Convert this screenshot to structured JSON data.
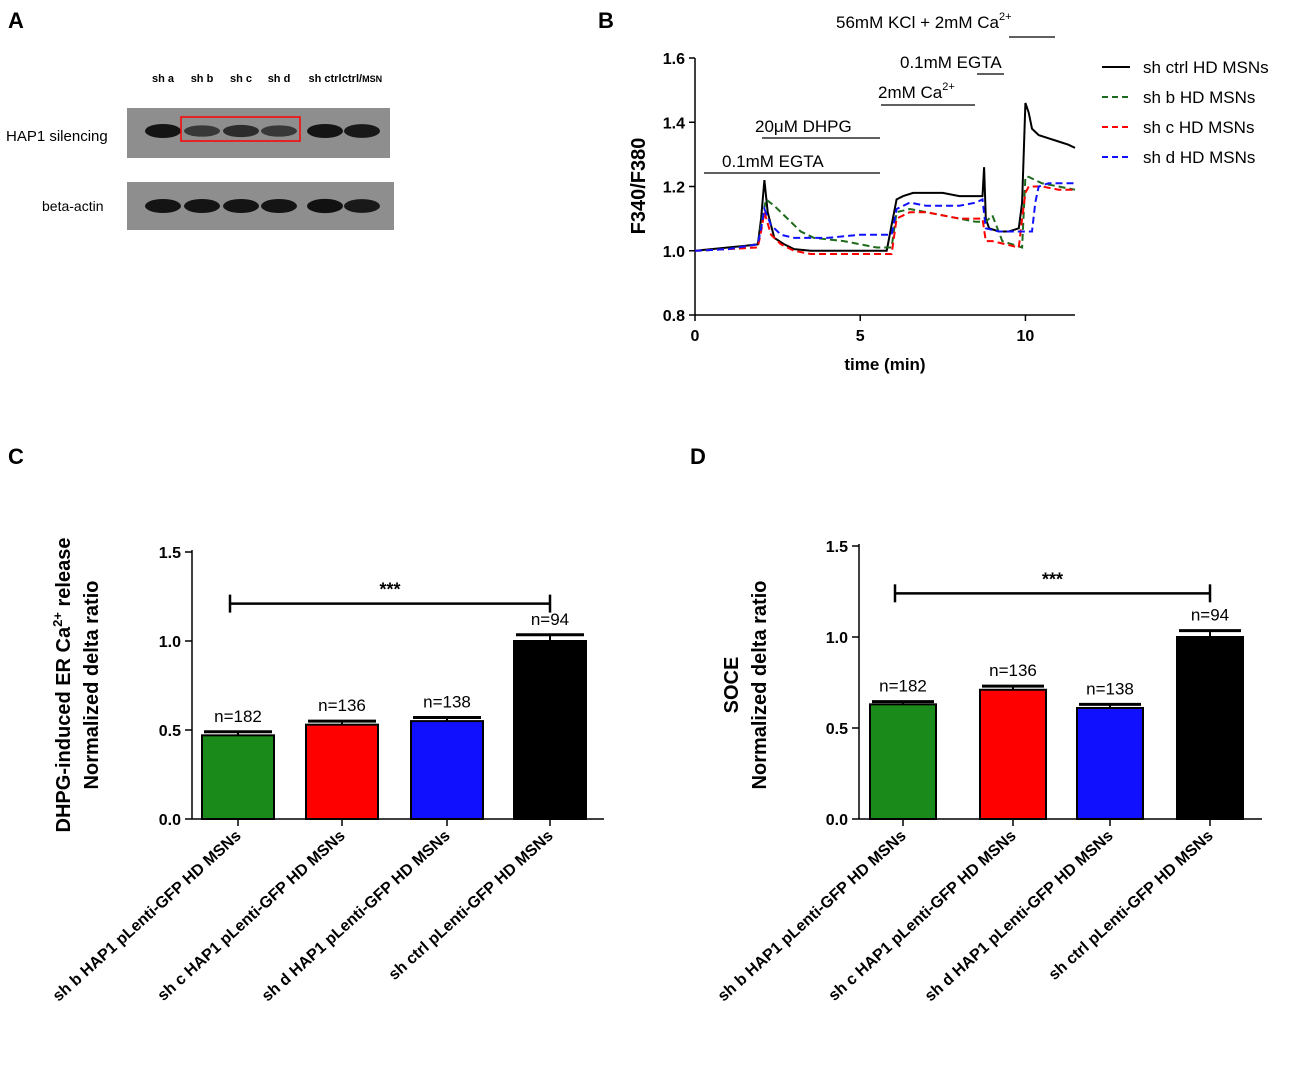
{
  "panels": {
    "a": "A",
    "b": "B",
    "c": "C",
    "d": "D"
  },
  "colors": {
    "green": "#1a8a1a",
    "red": "#ff0000",
    "blue": "#1010ff",
    "black": "#000000",
    "blot_bg": "#8e8e8e",
    "dark_green": "#1e6b1e"
  },
  "blot": {
    "lanes": [
      "sh a",
      "sh b",
      "sh c",
      "sh d",
      "sh ctrl",
      "ctrl/"
    ],
    "lane_suffix": "MSN",
    "rows": [
      {
        "label": "HAP1 silencing",
        "intensity": [
          1.0,
          0.55,
          0.7,
          0.55,
          1.0,
          0.95
        ]
      },
      {
        "label": "beta-actin",
        "intensity": [
          1.0,
          1.0,
          1.0,
          1.0,
          1.05,
          0.95
        ]
      }
    ]
  },
  "chart_data": [
    {
      "panel": "B",
      "type": "line",
      "xlabel": "time (min)",
      "ylabel": "F340/F380",
      "xlim": [
        0,
        11.5
      ],
      "ylim": [
        0.8,
        1.6
      ],
      "xticks": [
        "0",
        "5",
        "10"
      ],
      "yticks": [
        "0.8",
        "1.0",
        "1.2",
        "1.4",
        "1.6"
      ],
      "annotations": {
        "egta1": "0.1mM EGTA",
        "dhpg": "20μM DHPG",
        "ca1_prefix": "2mM Ca",
        "ca1_sup": "2+",
        "egta2": "0.1mM EGTA",
        "kcl_prefix": "56mM KCl + 2mM Ca",
        "kcl_sup": "2+"
      },
      "legend": [
        {
          "name": "sh ctrl HD MSNs",
          "color": "#000000",
          "style": "solid"
        },
        {
          "name": "sh b HD MSNs",
          "color": "#1e6b1e",
          "style": "dashed"
        },
        {
          "name": "sh c HD MSNs",
          "color": "#ff0000",
          "style": "dashed"
        },
        {
          "name": "sh d HD MSNs",
          "color": "#1010ff",
          "style": "dashed"
        }
      ],
      "series": [
        {
          "name": "sh ctrl HD MSNs",
          "color": "#000000",
          "dash": false,
          "x": [
            0,
            0.5,
            1.0,
            1.5,
            1.9,
            2.0,
            2.1,
            2.2,
            2.4,
            2.7,
            3.0,
            3.5,
            4.0,
            5.0,
            5.8,
            5.95,
            6.1,
            6.3,
            6.6,
            7.0,
            7.5,
            8.0,
            8.5,
            8.7,
            8.75,
            8.8,
            8.9,
            9.2,
            9.5,
            9.8,
            9.9,
            10.0,
            10.1,
            10.2,
            10.4,
            10.7,
            11.0,
            11.3,
            11.5
          ],
          "y": [
            1.0,
            1.005,
            1.01,
            1.015,
            1.02,
            1.1,
            1.22,
            1.12,
            1.04,
            1.02,
            1.005,
            1.0,
            1.0,
            1.0,
            1.0,
            1.08,
            1.16,
            1.17,
            1.18,
            1.18,
            1.18,
            1.17,
            1.17,
            1.17,
            1.26,
            1.1,
            1.07,
            1.06,
            1.06,
            1.07,
            1.15,
            1.46,
            1.43,
            1.38,
            1.36,
            1.35,
            1.34,
            1.33,
            1.32
          ]
        },
        {
          "name": "sh b HD MSNs",
          "color": "#1e6b1e",
          "dash": true,
          "x": [
            0,
            1.0,
            1.9,
            2.0,
            2.15,
            2.4,
            2.8,
            3.2,
            3.6,
            4.5,
            5.5,
            5.95,
            6.1,
            6.5,
            7.0,
            7.5,
            8.0,
            8.5,
            8.8,
            9.0,
            9.3,
            9.6,
            9.9,
            10.0,
            10.1,
            10.5,
            11.0,
            11.5
          ],
          "y": [
            1.0,
            1.005,
            1.02,
            1.08,
            1.16,
            1.14,
            1.1,
            1.06,
            1.04,
            1.03,
            1.01,
            1.01,
            1.12,
            1.13,
            1.12,
            1.11,
            1.1,
            1.09,
            1.09,
            1.11,
            1.03,
            1.02,
            1.01,
            1.23,
            1.23,
            1.21,
            1.2,
            1.19
          ]
        },
        {
          "name": "sh c HD MSNs",
          "color": "#ff0000",
          "dash": true,
          "x": [
            0,
            1.0,
            1.9,
            2.0,
            2.1,
            2.3,
            2.6,
            3.0,
            3.5,
            4.5,
            5.5,
            5.95,
            6.1,
            6.5,
            7.0,
            7.5,
            8.0,
            8.5,
            8.7,
            8.8,
            9.0,
            9.4,
            9.8,
            9.9,
            10.0,
            10.1,
            10.5,
            11.0,
            11.5
          ],
          "y": [
            1.0,
            1.005,
            1.01,
            1.06,
            1.12,
            1.05,
            1.02,
            1.0,
            0.99,
            0.99,
            0.99,
            0.99,
            1.1,
            1.12,
            1.12,
            1.11,
            1.1,
            1.1,
            1.1,
            1.03,
            1.03,
            1.02,
            1.01,
            1.1,
            1.18,
            1.2,
            1.2,
            1.19,
            1.19
          ]
        },
        {
          "name": "sh d HD MSNs",
          "color": "#1010ff",
          "dash": true,
          "x": [
            0,
            1.0,
            1.9,
            2.0,
            2.1,
            2.3,
            2.6,
            3.0,
            4.0,
            5.0,
            5.9,
            5.95,
            6.1,
            6.5,
            7.0,
            7.5,
            8.0,
            8.5,
            8.7,
            8.8,
            9.2,
            9.6,
            10.0,
            10.2,
            10.3,
            10.4,
            10.7,
            11.0,
            11.5
          ],
          "y": [
            1.0,
            1.005,
            1.02,
            1.07,
            1.13,
            1.08,
            1.05,
            1.04,
            1.04,
            1.05,
            1.05,
            1.05,
            1.13,
            1.15,
            1.14,
            1.14,
            1.14,
            1.15,
            1.16,
            1.07,
            1.06,
            1.06,
            1.06,
            1.06,
            1.15,
            1.2,
            1.21,
            1.21,
            1.21
          ]
        }
      ]
    },
    {
      "panel": "C",
      "type": "bar",
      "ylabel_line1_prefix": "DHPG-induced ER Ca",
      "ylabel_line1_sup": "2+",
      "ylabel_line1_suffix": " release",
      "ylabel_line2": "Normalized delta ratio",
      "ylim": [
        0,
        1.5
      ],
      "yticks": [
        "0.0",
        "0.5",
        "1.0",
        "1.5"
      ],
      "categories": [
        "sh b HAP1 pLenti-GFP HD MSNs",
        "sh c HAP1 pLenti-GFP HD MSNs",
        "sh d HAP1 pLenti-GFP HD MSNs",
        "sh ctrl pLenti-GFP HD MSNs"
      ],
      "values": [
        0.47,
        0.53,
        0.55,
        1.0
      ],
      "errors": [
        0.02,
        0.02,
        0.02,
        0.035
      ],
      "n_labels": [
        "n=182",
        "n=136",
        "n=138",
        "n=94"
      ],
      "colors": [
        "#1a8a1a",
        "#ff0000",
        "#1010ff",
        "#000000"
      ],
      "significance": "***",
      "sig_from": 0,
      "sig_to": 3,
      "sig_y": 1.21
    },
    {
      "panel": "D",
      "type": "bar",
      "ylabel_line1": "SOCE",
      "ylabel_line2": "Normalized delta ratio",
      "ylim": [
        0,
        1.5
      ],
      "yticks": [
        "0.0",
        "0.5",
        "1.0",
        "1.5"
      ],
      "categories": [
        "sh b HAP1 pLenti-GFP HD MSNs",
        "sh c HAP1 pLenti-GFP HD MSNs",
        "sh d HAP1 pLenti-GFP HD MSNs",
        "sh ctrl pLenti-GFP HD MSNs"
      ],
      "values": [
        0.63,
        0.71,
        0.61,
        1.0
      ],
      "errors": [
        0.015,
        0.02,
        0.02,
        0.035
      ],
      "n_labels": [
        "n=182",
        "n=136",
        "n=138",
        "n=94"
      ],
      "colors": [
        "#1a8a1a",
        "#ff0000",
        "#1010ff",
        "#000000"
      ],
      "significance": "***",
      "sig_from": 0,
      "sig_to": 3,
      "sig_y": 1.24
    }
  ]
}
